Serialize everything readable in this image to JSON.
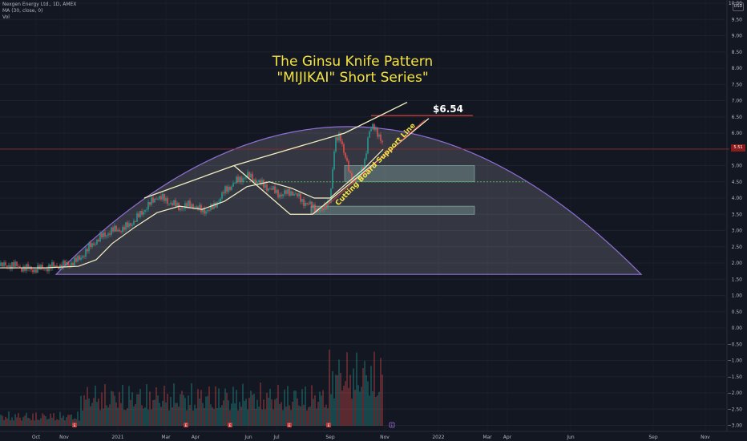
{
  "legend": {
    "symbol": "Nexgen Energy Ltd., 1D, AMEX",
    "ma": "MA (30, close, 0)",
    "vol": "Vol"
  },
  "currency_button": "USD",
  "last_price_label": "5.51",
  "title": {
    "line1": "The Ginsu Knife Pattern",
    "line2": "\"MIJIKAI\" Short Series\""
  },
  "price_callout": "$6.54",
  "support_label": "Cutting Board Support Line",
  "colors": {
    "background": "#131722",
    "up_candle": "#26a69a",
    "down_candle": "#ef5350",
    "ma_line": "#f5f0c8",
    "trendline": "#f5e342",
    "arc": "#8f6fd6",
    "resistance": "#d43f3f",
    "support_dotted": "#4caf50",
    "zone": "#8fb8b0"
  },
  "chart_data": {
    "type": "candlestick",
    "title": "The Ginsu Knife Pattern \"MIJIKAI\" Short Series\"",
    "symbol": "Nexgen Energy Ltd., 1D, AMEX",
    "x_ticks": [
      "Oct",
      "Nov",
      "2021",
      "Mar",
      "Apr",
      "Jun",
      "Jul",
      "Sep",
      "Nov",
      "2022",
      "Mar",
      "Apr",
      "Jun",
      "Sep",
      "Nov"
    ],
    "y_ticks": [
      "10.00",
      "9.50",
      "9.00",
      "8.50",
      "8.00",
      "7.50",
      "7.00",
      "6.50",
      "6.00",
      "5.50",
      "5.00",
      "4.50",
      "4.00",
      "3.50",
      "3.00",
      "2.50",
      "2.00",
      "1.50",
      "1.00",
      "0.50",
      "0.00",
      "−0.50",
      "−1.00",
      "−1.50",
      "−2.00",
      "−2.50",
      "−3.00"
    ],
    "ylim": [
      -3.2,
      10.0
    ],
    "last_price": 5.51,
    "resistance_level": 6.54,
    "support_dotted_level": 4.5,
    "price_path": [
      [
        0,
        1.9
      ],
      [
        14,
        1.95
      ],
      [
        28,
        1.85
      ],
      [
        42,
        1.8
      ],
      [
        56,
        1.85
      ],
      [
        70,
        1.9
      ],
      [
        84,
        1.95
      ],
      [
        98,
        2.1
      ],
      [
        112,
        2.5
      ],
      [
        126,
        2.8
      ],
      [
        140,
        3.0
      ],
      [
        154,
        3.05
      ],
      [
        168,
        3.3
      ],
      [
        182,
        3.7
      ],
      [
        196,
        4.05
      ],
      [
        210,
        3.9
      ],
      [
        224,
        3.7
      ],
      [
        238,
        3.8
      ],
      [
        252,
        3.6
      ],
      [
        266,
        3.7
      ],
      [
        280,
        4.2
      ],
      [
        294,
        4.5
      ],
      [
        308,
        4.7
      ],
      [
        322,
        4.5
      ],
      [
        336,
        4.3
      ],
      [
        350,
        4.1
      ],
      [
        364,
        4.2
      ],
      [
        378,
        3.9
      ],
      [
        392,
        3.7
      ],
      [
        402,
        3.6
      ],
      [
        412,
        4.0
      ],
      [
        418,
        5.7
      ],
      [
        424,
        6.0
      ],
      [
        430,
        5.3
      ],
      [
        438,
        4.6
      ],
      [
        446,
        4.6
      ],
      [
        454,
        5.0
      ],
      [
        460,
        6.0
      ],
      [
        466,
        6.2
      ],
      [
        472,
        6.0
      ],
      [
        478,
        5.6
      ]
    ],
    "ma_path": [
      [
        0,
        1.85
      ],
      [
        56,
        1.85
      ],
      [
        98,
        1.9
      ],
      [
        120,
        2.1
      ],
      [
        140,
        2.6
      ],
      [
        168,
        3.1
      ],
      [
        196,
        3.55
      ],
      [
        224,
        3.75
      ],
      [
        252,
        3.65
      ],
      [
        280,
        3.9
      ],
      [
        308,
        4.35
      ],
      [
        336,
        4.5
      ],
      [
        364,
        4.3
      ],
      [
        392,
        4.0
      ],
      [
        412,
        4.0
      ],
      [
        430,
        4.4
      ],
      [
        454,
        4.9
      ],
      [
        478,
        5.5
      ]
    ],
    "series": [
      {
        "name": "MA (30, close, 0)",
        "type": "line"
      },
      {
        "name": "Vol",
        "type": "bar"
      }
    ],
    "annotations": {
      "arc_base_level": 1.65,
      "arc_peak_level": 6.2,
      "wedge_upper": [
        [
          180,
          4.0
        ],
        [
          292,
          5.0
        ],
        [
          430,
          6.0
        ],
        [
          508,
          6.95
        ]
      ],
      "wedge_lower": [
        [
          292,
          5.0
        ],
        [
          362,
          3.5
        ],
        [
          390,
          3.5
        ],
        [
          535,
          6.45
        ]
      ],
      "support_line": [
        [
          400,
          3.6
        ],
        [
          530,
          6.4
        ]
      ],
      "zones": [
        {
          "x0": 430,
          "x1": 592,
          "top": 5.0,
          "bottom": 4.5
        },
        {
          "x0": 388,
          "x1": 592,
          "top": 3.75,
          "bottom": 3.5
        }
      ]
    }
  }
}
